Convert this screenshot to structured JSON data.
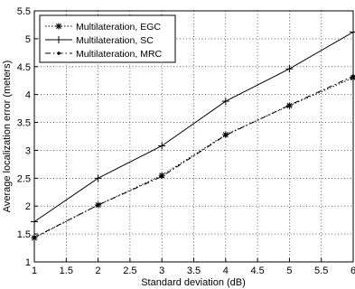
{
  "chart_data": {
    "type": "line",
    "title": "",
    "xlabel": "Standard deviation (dB)",
    "ylabel": "Average localization error (meters)",
    "xlim": [
      1,
      6
    ],
    "ylim": [
      1,
      5.5
    ],
    "x_ticks": [
      "1",
      "1.5",
      "2",
      "2.5",
      "3",
      "3.5",
      "4",
      "4.5",
      "5",
      "5.5",
      "6"
    ],
    "y_ticks": [
      "1",
      "1.5",
      "2",
      "2.5",
      "3",
      "3.5",
      "4",
      "4.5",
      "5",
      "5.5"
    ],
    "grid": true,
    "legend_position": "top-left",
    "x": [
      1,
      2,
      3,
      4,
      5,
      6
    ],
    "series": [
      {
        "name": "Multilateration, EGC",
        "values": [
          1.43,
          2.02,
          2.55,
          3.28,
          3.8,
          4.3
        ],
        "color": "#000000",
        "dash": "dotted",
        "marker": "asterisk"
      },
      {
        "name": "Multilateration, SC",
        "values": [
          1.72,
          2.5,
          3.08,
          3.88,
          4.46,
          5.12
        ],
        "color": "#000000",
        "dash": "solid",
        "marker": "plus"
      },
      {
        "name": "Multilateration, MRC",
        "values": [
          1.44,
          2.02,
          2.53,
          3.27,
          3.81,
          4.33
        ],
        "color": "#000000",
        "dash": "dashdot",
        "marker": "dot"
      }
    ]
  }
}
